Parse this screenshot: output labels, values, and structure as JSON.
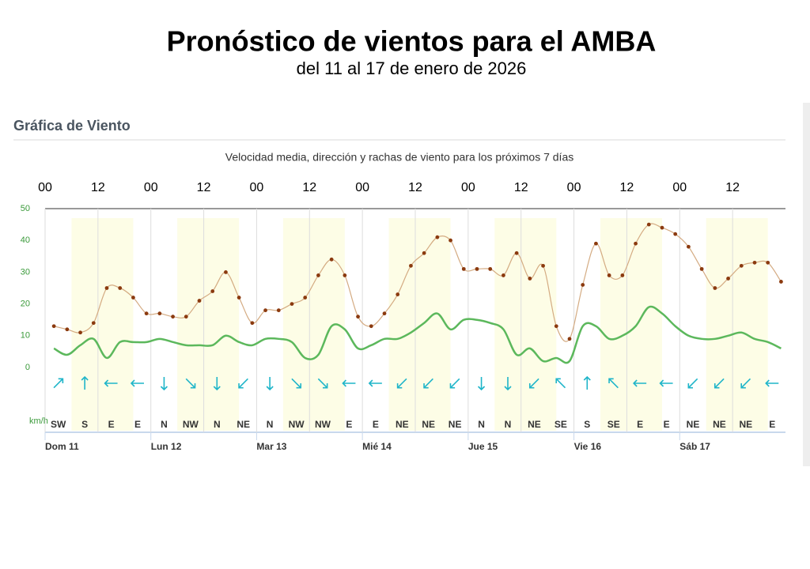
{
  "header": {
    "title": "Pronóstico de vientos para el AMBA",
    "subtitle": "del 11 al 17 de enero de 2026"
  },
  "section_title": "Gráfica de Viento",
  "chart_data": {
    "type": "line",
    "title": "Velocidad media, dirección y rachas de viento para los próximos 7 días",
    "y_unit": "km/h",
    "xlim": [
      0,
      168
    ],
    "xticks": [
      {
        "value": 0,
        "label": "00"
      },
      {
        "value": 12,
        "label": "12"
      },
      {
        "value": 24,
        "label": "00"
      },
      {
        "value": 36,
        "label": "12"
      },
      {
        "value": 48,
        "label": "00"
      },
      {
        "value": 60,
        "label": "12"
      },
      {
        "value": 72,
        "label": "00"
      },
      {
        "value": 84,
        "label": "12"
      },
      {
        "value": 96,
        "label": "00"
      },
      {
        "value": 108,
        "label": "12"
      },
      {
        "value": 120,
        "label": "00"
      },
      {
        "value": 132,
        "label": "12"
      },
      {
        "value": 144,
        "label": "00"
      },
      {
        "value": 156,
        "label": "12"
      }
    ],
    "day_ticks": [
      {
        "value": 0,
        "label": "Dom 11"
      },
      {
        "value": 24,
        "label": "Lun 12"
      },
      {
        "value": 48,
        "label": "Mar 13"
      },
      {
        "value": 72,
        "label": "Mié 14"
      },
      {
        "value": 96,
        "label": "Jue 15"
      },
      {
        "value": 120,
        "label": "Vie 16"
      },
      {
        "value": 144,
        "label": "Sáb 17"
      }
    ],
    "ylim": [
      0,
      50
    ],
    "yticks": [
      0,
      10,
      20,
      30,
      40,
      50
    ],
    "x": [
      2,
      5,
      8,
      11,
      14,
      17,
      20,
      23,
      26,
      29,
      32,
      35,
      38,
      41,
      44,
      47,
      50,
      53,
      56,
      59,
      62,
      65,
      68,
      71,
      74,
      77,
      80,
      83,
      86,
      89,
      92,
      95,
      98,
      101,
      104,
      107,
      110,
      113,
      116,
      119,
      122,
      125,
      128,
      131,
      134,
      137,
      140,
      143,
      146,
      149,
      152,
      155,
      158,
      161,
      164,
      167
    ],
    "series": [
      {
        "color": "#d4ab82",
        "marker_color": "#8b3a0f",
        "values": [
          13,
          12,
          11,
          14,
          25,
          25,
          22,
          17,
          17,
          16,
          16,
          21,
          24,
          30,
          22,
          14,
          18,
          18,
          20,
          22,
          29,
          34,
          29,
          16,
          13,
          17,
          23,
          32,
          36,
          41,
          40,
          31,
          31,
          31,
          29,
          36,
          28,
          32,
          13,
          9,
          26,
          39,
          29,
          29,
          39,
          45,
          44,
          42,
          38,
          31,
          25,
          28,
          32,
          33,
          33,
          27
        ]
      },
      {
        "color": "#5cb85c",
        "values": [
          6,
          4,
          7,
          9,
          3,
          8,
          8,
          8,
          9,
          8,
          7,
          7,
          7,
          10,
          8,
          7,
          9,
          9,
          8,
          3,
          4,
          13,
          12,
          6,
          7,
          9,
          9,
          11,
          14,
          17,
          12,
          15,
          15,
          14,
          12,
          4,
          6,
          2,
          3,
          2,
          13,
          13,
          9,
          10,
          13,
          19,
          17,
          13,
          10,
          9,
          9,
          10,
          11,
          9,
          8,
          6
        ]
      }
    ],
    "directions": {
      "x": [
        3,
        9,
        15,
        21,
        27,
        33,
        39,
        45,
        51,
        57,
        63,
        69,
        75,
        81,
        87,
        93,
        99,
        105,
        111,
        117,
        123,
        129,
        135,
        141,
        147,
        153,
        159,
        165
      ],
      "labels": [
        "SW",
        "S",
        "E",
        "E",
        "N",
        "NW",
        "N",
        "NE",
        "N",
        "NW",
        "NW",
        "E",
        "E",
        "NE",
        "NE",
        "NE",
        "N",
        "N",
        "NE",
        "SE",
        "S",
        "SE",
        "E",
        "E",
        "NE",
        "NE",
        "NE",
        "E"
      ]
    }
  }
}
